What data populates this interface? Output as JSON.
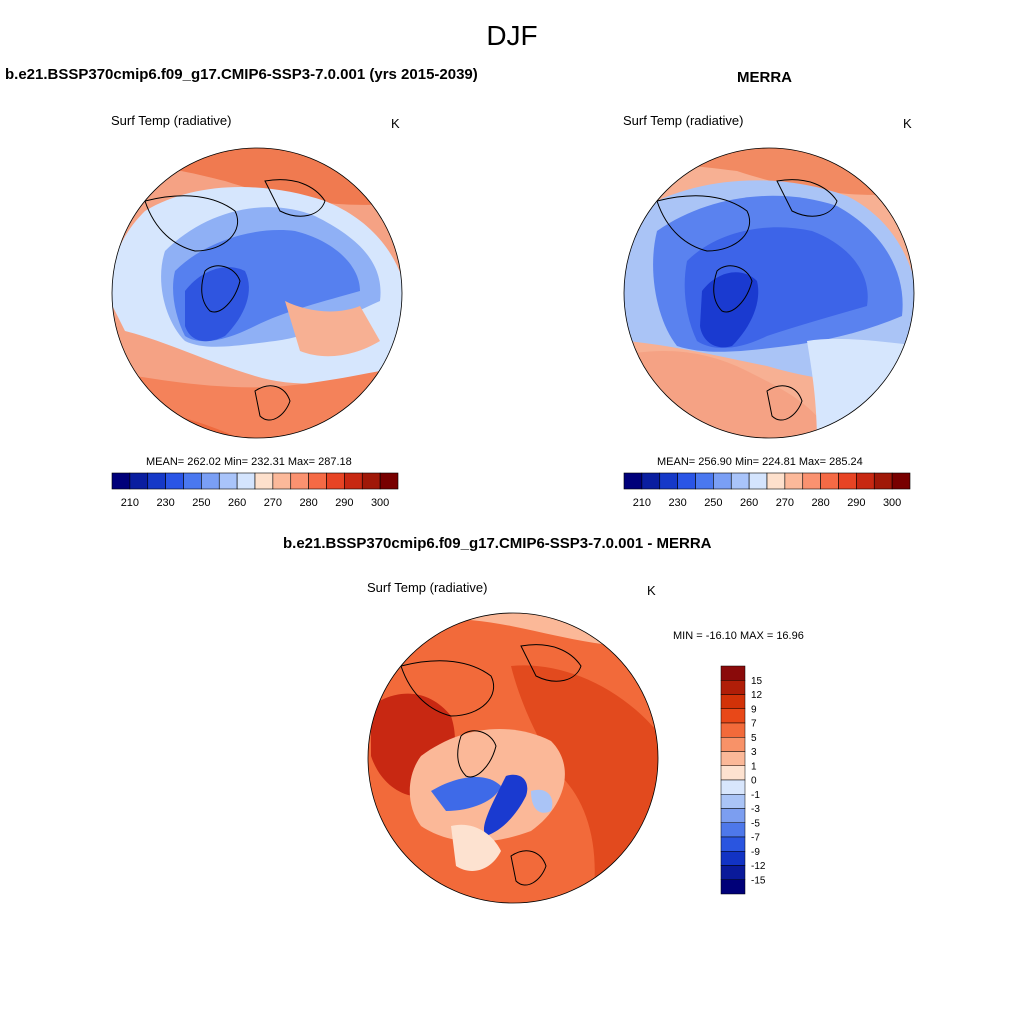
{
  "figure": {
    "title": "DJF",
    "panels": [
      {
        "id": "model",
        "title": "b.e21.BSSP370cmip6.f09_g17.CMIP6-SSP3-7.0.001 (yrs 2015-2039)",
        "variable": "Surf Temp (radiative)",
        "units": "K",
        "stats": "MEAN= 262.02  Min= 232.31  Max= 287.18"
      },
      {
        "id": "obs",
        "title": "MERRA",
        "variable": "Surf Temp (radiative)",
        "units": "K",
        "stats": "MEAN= 256.90  Min= 224.81  Max= 285.24"
      },
      {
        "id": "diff",
        "title": "b.e21.BSSP370cmip6.f09_g17.CMIP6-SSP3-7.0.001 - MERRA",
        "variable": "Surf Temp (radiative)",
        "units": "K",
        "stats": "MIN = -16.10 MAX =  16.96"
      }
    ]
  },
  "chart_data": [
    {
      "type": "heatmap",
      "projection": "north polar stereographic",
      "title": "b.e21.BSSP370cmip6.f09_g17.CMIP6-SSP3-7.0.001 (yrs 2015-2039)",
      "subtitle": "Surf Temp (radiative)",
      "units": "K",
      "mean": 262.02,
      "min": 232.31,
      "max": 287.18,
      "colorbar": {
        "orientation": "horizontal",
        "tick_labels": [
          "210",
          "230",
          "250",
          "260",
          "270",
          "280",
          "290",
          "300"
        ],
        "colors": [
          "#00007a",
          "#0a1ea0",
          "#1639c8",
          "#2a55e6",
          "#4a78f0",
          "#7a9ff5",
          "#a9c4fa",
          "#d4e4fd",
          "#fde0cc",
          "#fcb99a",
          "#fa9270",
          "#f56a45",
          "#e84424",
          "#c82812",
          "#a01808",
          "#780000"
        ]
      }
    },
    {
      "type": "heatmap",
      "projection": "north polar stereographic",
      "title": "MERRA",
      "subtitle": "Surf Temp (radiative)",
      "units": "K",
      "mean": 256.9,
      "min": 224.81,
      "max": 285.24,
      "colorbar": {
        "orientation": "horizontal",
        "tick_labels": [
          "210",
          "230",
          "250",
          "260",
          "270",
          "280",
          "290",
          "300"
        ],
        "colors": [
          "#00007a",
          "#0a1ea0",
          "#1639c8",
          "#2a55e6",
          "#4a78f0",
          "#7a9ff5",
          "#a9c4fa",
          "#d4e4fd",
          "#fde0cc",
          "#fcb99a",
          "#fa9270",
          "#f56a45",
          "#e84424",
          "#c82812",
          "#a01808",
          "#780000"
        ]
      }
    },
    {
      "type": "heatmap",
      "projection": "north polar stereographic",
      "title": "b.e21.BSSP370cmip6.f09_g17.CMIP6-SSP3-7.0.001 - MERRA",
      "subtitle": "Surf Temp (radiative)",
      "units": "K",
      "min": -16.1,
      "max": 16.96,
      "colorbar": {
        "orientation": "vertical",
        "tick_labels": [
          "15",
          "12",
          "9",
          "7",
          "5",
          "3",
          "1",
          "0",
          "-1",
          "-3",
          "-5",
          "-7",
          "-9",
          "-12",
          "-15"
        ],
        "colors": [
          "#8a0a0a",
          "#b01e08",
          "#d23208",
          "#e84818",
          "#f26a3a",
          "#f89268",
          "#fbb898",
          "#fde2d0",
          "#d8e6fc",
          "#aac4f6",
          "#7c9ef0",
          "#4e78ea",
          "#2a55e0",
          "#1233c4",
          "#0a1a9a",
          "#000078"
        ]
      }
    }
  ]
}
